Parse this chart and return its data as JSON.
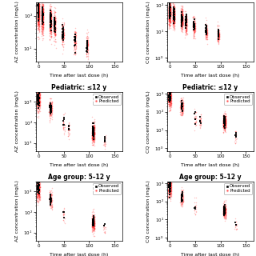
{
  "panels": [
    {
      "title": "",
      "ylabel": "AZ concentration (mg/L)",
      "xlabel": "Time after last dose (h)",
      "yscale": "log",
      "ylim": [
        4,
        250
      ],
      "xlim": [
        -5,
        165
      ],
      "xticks": [
        0,
        50,
        100,
        150
      ],
      "yticks_minor": true,
      "clusters": [
        {
          "x": 0,
          "xw": 2,
          "n_obs": 70,
          "n_pred": 500,
          "obs_ymed": 130,
          "obs_ysig": 0.5,
          "pred_ymed": 120,
          "pred_ysig": 0.6
        },
        {
          "x": 8,
          "xw": 2,
          "n_obs": 50,
          "n_pred": 400,
          "obs_ymed": 100,
          "obs_ysig": 0.45,
          "pred_ymed": 90,
          "pred_ysig": 0.55
        },
        {
          "x": 24,
          "xw": 2,
          "n_obs": 40,
          "n_pred": 300,
          "obs_ymed": 70,
          "obs_ysig": 0.45,
          "pred_ymed": 65,
          "pred_ysig": 0.5
        },
        {
          "x": 32,
          "xw": 2,
          "n_obs": 30,
          "n_pred": 200,
          "obs_ymed": 55,
          "obs_ysig": 0.4,
          "pred_ymed": 50,
          "pred_ysig": 0.5
        },
        {
          "x": 48,
          "xw": 2,
          "n_obs": 25,
          "n_pred": 150,
          "obs_ymed": 30,
          "obs_ysig": 0.4,
          "pred_ymed": 28,
          "pred_ysig": 0.45
        },
        {
          "x": 72,
          "xw": 2,
          "n_obs": 20,
          "n_pred": 120,
          "obs_ymed": 18,
          "obs_ysig": 0.38,
          "pred_ymed": 16,
          "pred_ysig": 0.42
        },
        {
          "x": 96,
          "xw": 2,
          "n_obs": 20,
          "n_pred": 120,
          "obs_ymed": 13,
          "obs_ysig": 0.38,
          "pred_ymed": 12,
          "pred_ysig": 0.4
        }
      ]
    },
    {
      "title": "",
      "ylabel": "CQ concentration (mg/L)",
      "xlabel": "Time after last dose (h)",
      "yscale": "log",
      "ylim": [
        0.7,
        120
      ],
      "xlim": [
        -5,
        165
      ],
      "xticks": [
        0,
        50,
        100,
        150
      ],
      "clusters": [
        {
          "x": 0,
          "xw": 2,
          "n_obs": 70,
          "n_pred": 500,
          "obs_ymed": 50,
          "obs_ysig": 0.45,
          "pred_ymed": 48,
          "pred_ysig": 0.5
        },
        {
          "x": 8,
          "xw": 2,
          "n_obs": 50,
          "n_pred": 400,
          "obs_ymed": 40,
          "obs_ysig": 0.4,
          "pred_ymed": 38,
          "pred_ysig": 0.48
        },
        {
          "x": 24,
          "xw": 2,
          "n_obs": 40,
          "n_pred": 300,
          "obs_ymed": 28,
          "obs_ysig": 0.4,
          "pred_ymed": 26,
          "pred_ysig": 0.45
        },
        {
          "x": 32,
          "xw": 2,
          "n_obs": 30,
          "n_pred": 200,
          "obs_ymed": 22,
          "obs_ysig": 0.38,
          "pred_ymed": 20,
          "pred_ysig": 0.43
        },
        {
          "x": 48,
          "xw": 2,
          "n_obs": 25,
          "n_pred": 150,
          "obs_ymed": 15,
          "obs_ysig": 0.35,
          "pred_ymed": 14,
          "pred_ysig": 0.4
        },
        {
          "x": 72,
          "xw": 2,
          "n_obs": 20,
          "n_pred": 120,
          "obs_ymed": 10,
          "obs_ysig": 0.35,
          "pred_ymed": 9,
          "pred_ysig": 0.38
        },
        {
          "x": 96,
          "xw": 2,
          "n_obs": 20,
          "n_pred": 120,
          "obs_ymed": 8,
          "obs_ysig": 0.35,
          "pred_ymed": 7,
          "pred_ysig": 0.38
        }
      ]
    },
    {
      "title": "Pediatric: ≤12 y",
      "ylabel": "AZ concentration (mg/L)",
      "xlabel": "Time after last dose (h)",
      "yscale": "log",
      "ylim": [
        4,
        3000
      ],
      "xlim": [
        -5,
        165
      ],
      "xticks": [
        0,
        50,
        100,
        150
      ],
      "clusters": [
        {
          "x": 0,
          "xw": 3,
          "n_obs": 60,
          "n_pred": 400,
          "obs_ymed": 1500,
          "obs_ysig": 0.55,
          "pred_ymed": 1300,
          "pred_ysig": 0.65
        },
        {
          "x": 24,
          "xw": 3,
          "n_obs": 30,
          "n_pred": 150,
          "obs_ymed": 500,
          "obs_ysig": 0.5,
          "pred_ymed": 450,
          "pred_ysig": 0.6
        },
        {
          "x": 50,
          "xw": 2,
          "n_obs": 5,
          "n_pred": 30,
          "obs_ymed": 80,
          "obs_ysig": 0.5,
          "pred_ymed": 70,
          "pred_ysig": 0.6
        },
        {
          "x": 60,
          "xw": 2,
          "n_obs": 5,
          "n_pred": 30,
          "obs_ymed": 50,
          "obs_ysig": 0.5,
          "pred_ymed": 45,
          "pred_ysig": 0.6
        },
        {
          "x": 108,
          "xw": 3,
          "n_obs": 50,
          "n_pred": 300,
          "obs_ymed": 35,
          "obs_ysig": 0.5,
          "pred_ymed": 30,
          "pred_ysig": 0.55
        },
        {
          "x": 130,
          "xw": 2,
          "n_obs": 5,
          "n_pred": 20,
          "obs_ymed": 15,
          "obs_ysig": 0.4,
          "pred_ymed": 12,
          "pred_ysig": 0.5
        }
      ],
      "show_legend": true
    },
    {
      "title": "Pediatric: ≤12 y",
      "ylabel": "CQ concentration (mg/L)",
      "xlabel": "Time after last dose (h)",
      "yscale": "log",
      "ylim": [
        0.7,
        1200
      ],
      "xlim": [
        -5,
        165
      ],
      "xticks": [
        0,
        50,
        100,
        150
      ],
      "clusters": [
        {
          "x": 0,
          "xw": 3,
          "n_obs": 60,
          "n_pred": 400,
          "obs_ymed": 700,
          "obs_ysig": 0.5,
          "pred_ymed": 650,
          "pred_ysig": 0.6
        },
        {
          "x": 24,
          "xw": 3,
          "n_obs": 30,
          "n_pred": 150,
          "obs_ymed": 200,
          "obs_ysig": 0.45,
          "pred_ymed": 180,
          "pred_ysig": 0.55
        },
        {
          "x": 50,
          "xw": 2,
          "n_obs": 5,
          "n_pred": 30,
          "obs_ymed": 50,
          "obs_ysig": 0.45,
          "pred_ymed": 45,
          "pred_ysig": 0.55
        },
        {
          "x": 60,
          "xw": 2,
          "n_obs": 5,
          "n_pred": 30,
          "obs_ymed": 30,
          "obs_ysig": 0.4,
          "pred_ymed": 28,
          "pred_ysig": 0.5
        },
        {
          "x": 108,
          "xw": 3,
          "n_obs": 50,
          "n_pred": 300,
          "obs_ymed": 30,
          "obs_ysig": 0.45,
          "pred_ymed": 28,
          "pred_ysig": 0.5
        },
        {
          "x": 130,
          "xw": 2,
          "n_obs": 5,
          "n_pred": 20,
          "obs_ymed": 5,
          "obs_ysig": 0.4,
          "pred_ymed": 4,
          "pred_ysig": 0.5
        }
      ],
      "show_legend": true
    },
    {
      "title": "Age group: 5–12 y",
      "ylabel": "AZ concentration (mg/L)",
      "xlabel": "Time after last dose (h)",
      "yscale": "log",
      "ylim": [
        4,
        3000
      ],
      "xlim": [
        -5,
        165
      ],
      "xticks": [
        0,
        50,
        100,
        150
      ],
      "clusters": [
        {
          "x": 0,
          "xw": 3,
          "n_obs": 50,
          "n_pred": 300,
          "obs_ymed": 1400,
          "obs_ysig": 0.5,
          "pred_ymed": 1200,
          "pred_ysig": 0.6
        },
        {
          "x": 24,
          "xw": 3,
          "n_obs": 20,
          "n_pred": 100,
          "obs_ymed": 450,
          "obs_ysig": 0.45,
          "pred_ymed": 400,
          "pred_ysig": 0.55
        },
        {
          "x": 50,
          "xw": 2,
          "n_obs": 3,
          "n_pred": 20,
          "obs_ymed": 80,
          "obs_ysig": 0.45,
          "pred_ymed": 70,
          "pred_ysig": 0.55
        },
        {
          "x": 108,
          "xw": 3,
          "n_obs": 40,
          "n_pred": 250,
          "obs_ymed": 35,
          "obs_ysig": 0.48,
          "pred_ymed": 30,
          "pred_ysig": 0.52
        },
        {
          "x": 130,
          "xw": 2,
          "n_obs": 3,
          "n_pred": 15,
          "obs_ymed": 20,
          "obs_ysig": 0.4,
          "pred_ymed": 18,
          "pred_ysig": 0.48
        }
      ],
      "show_legend": true
    },
    {
      "title": "Age group: 5–12 y",
      "ylabel": "CQ concentration (mg/L)",
      "xlabel": "Time after last dose (h)",
      "yscale": "log",
      "ylim": [
        0.7,
        1200
      ],
      "xlim": [
        -5,
        165
      ],
      "xticks": [
        0,
        50,
        100,
        150
      ],
      "clusters": [
        {
          "x": 0,
          "xw": 3,
          "n_obs": 50,
          "n_pred": 300,
          "obs_ymed": 600,
          "obs_ysig": 0.5,
          "pred_ymed": 550,
          "pred_ysig": 0.6
        },
        {
          "x": 24,
          "xw": 3,
          "n_obs": 20,
          "n_pred": 100,
          "obs_ymed": 180,
          "obs_ysig": 0.45,
          "pred_ymed": 160,
          "pred_ysig": 0.55
        },
        {
          "x": 50,
          "xw": 2,
          "n_obs": 3,
          "n_pred": 20,
          "obs_ymed": 50,
          "obs_ysig": 0.4,
          "pred_ymed": 45,
          "pred_ysig": 0.5
        },
        {
          "x": 108,
          "xw": 3,
          "n_obs": 40,
          "n_pred": 250,
          "obs_ymed": 30,
          "obs_ysig": 0.45,
          "pred_ymed": 28,
          "pred_ysig": 0.5
        },
        {
          "x": 130,
          "xw": 2,
          "n_obs": 3,
          "n_pred": 15,
          "obs_ymed": 5,
          "obs_ysig": 0.38,
          "pred_ymed": 4,
          "pred_ysig": 0.45
        }
      ],
      "show_legend": true
    }
  ],
  "obs_color": "#000000",
  "pred_color": "#ff2222",
  "obs_alpha": 0.85,
  "pred_alpha": 0.25,
  "obs_marker": "s",
  "pred_marker": "o",
  "obs_size": 1.8,
  "pred_size": 1.2,
  "background": "#ffffff",
  "title_fontsize": 5.5,
  "label_fontsize": 4.5,
  "tick_fontsize": 4.0,
  "legend_fontsize": 4.0
}
